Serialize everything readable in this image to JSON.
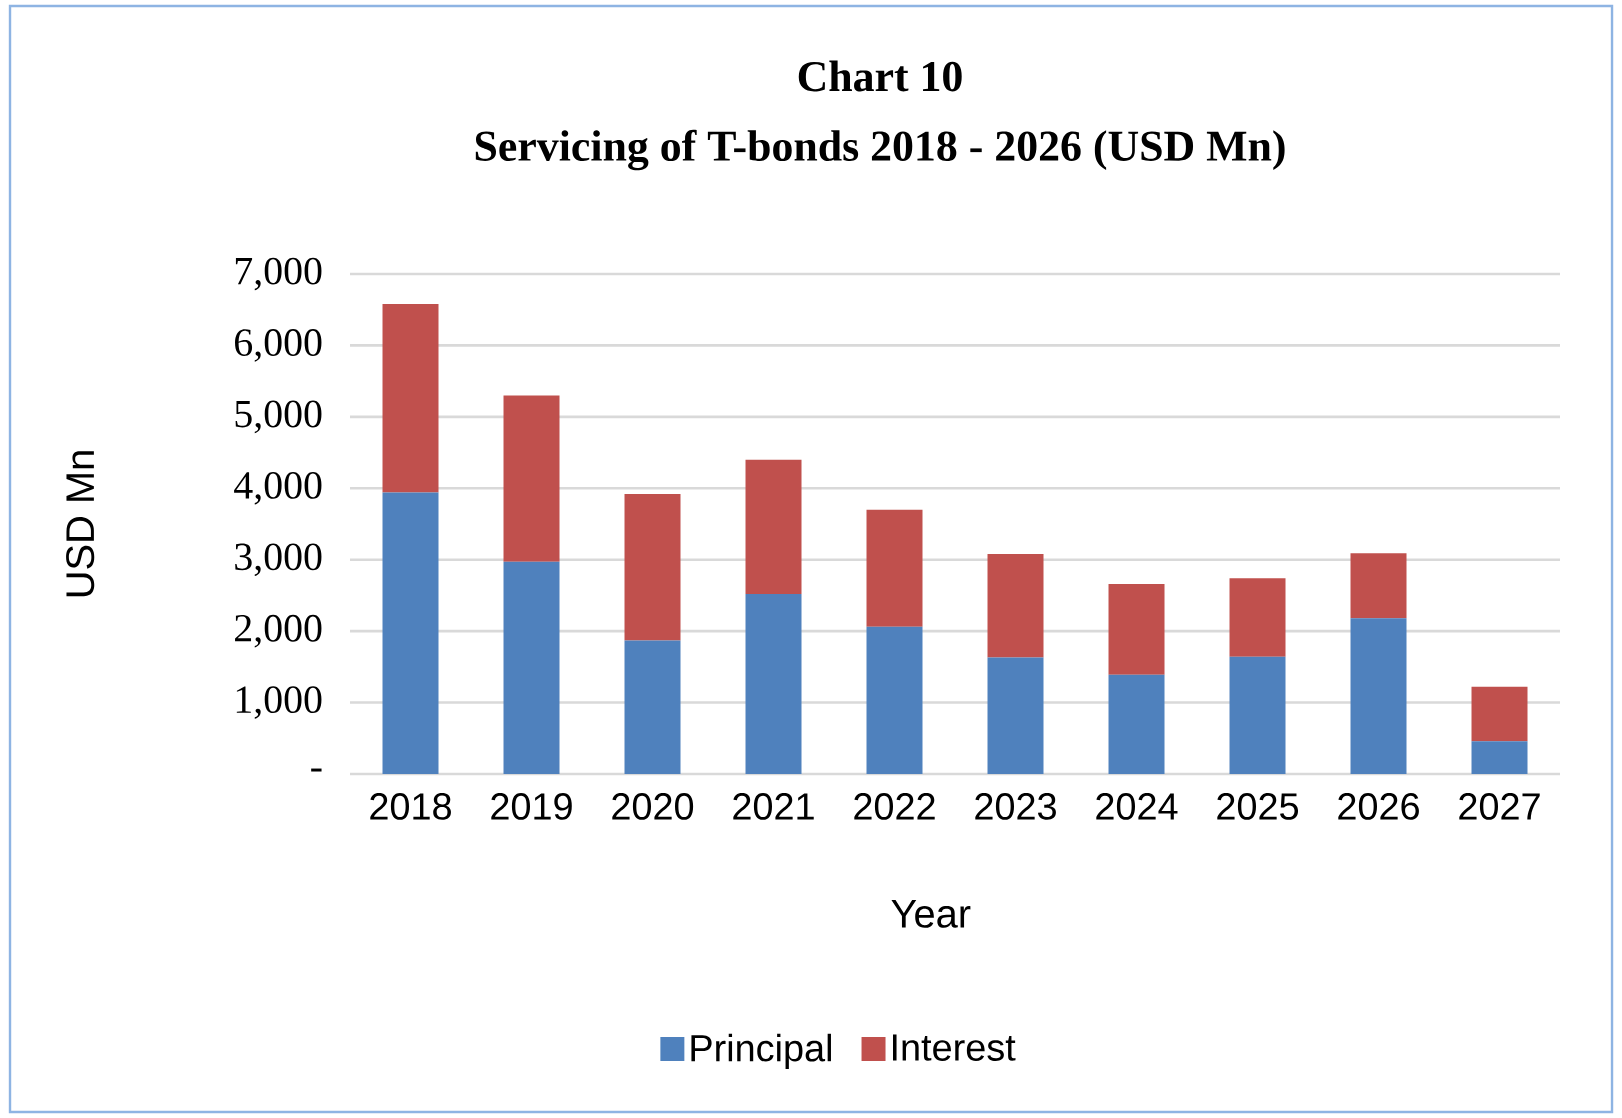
{
  "chart_data": {
    "type": "bar",
    "title": "Chart 10",
    "subtitle": "Servicing of T-bonds 2018 - 2026 (USD Mn)",
    "xlabel": "Year",
    "ylabel": "USD Mn",
    "categories": [
      "2018",
      "2019",
      "2020",
      "2021",
      "2022",
      "2023",
      "2024",
      "2025",
      "2026",
      "2027"
    ],
    "series": [
      {
        "name": "Principal",
        "color": "#4f81bd",
        "values": [
          3940,
          2970,
          1870,
          2520,
          2060,
          1630,
          1390,
          1640,
          2180,
          460
        ]
      },
      {
        "name": "Interest",
        "color": "#c0504d",
        "values": [
          2640,
          2330,
          2050,
          1880,
          1640,
          1450,
          1270,
          1100,
          910,
          760
        ]
      }
    ],
    "stacked": true,
    "ylim": [
      0,
      7000
    ],
    "yticks": [
      {
        "value": 0,
        "label": "-"
      },
      {
        "value": 1000,
        "label": "1,000"
      },
      {
        "value": 2000,
        "label": "2,000"
      },
      {
        "value": 3000,
        "label": "3,000"
      },
      {
        "value": 4000,
        "label": "4,000"
      },
      {
        "value": 5000,
        "label": "5,000"
      },
      {
        "value": 6000,
        "label": "6,000"
      },
      {
        "value": 7000,
        "label": "7,000"
      }
    ],
    "grid": "y",
    "legend": "bottom"
  }
}
